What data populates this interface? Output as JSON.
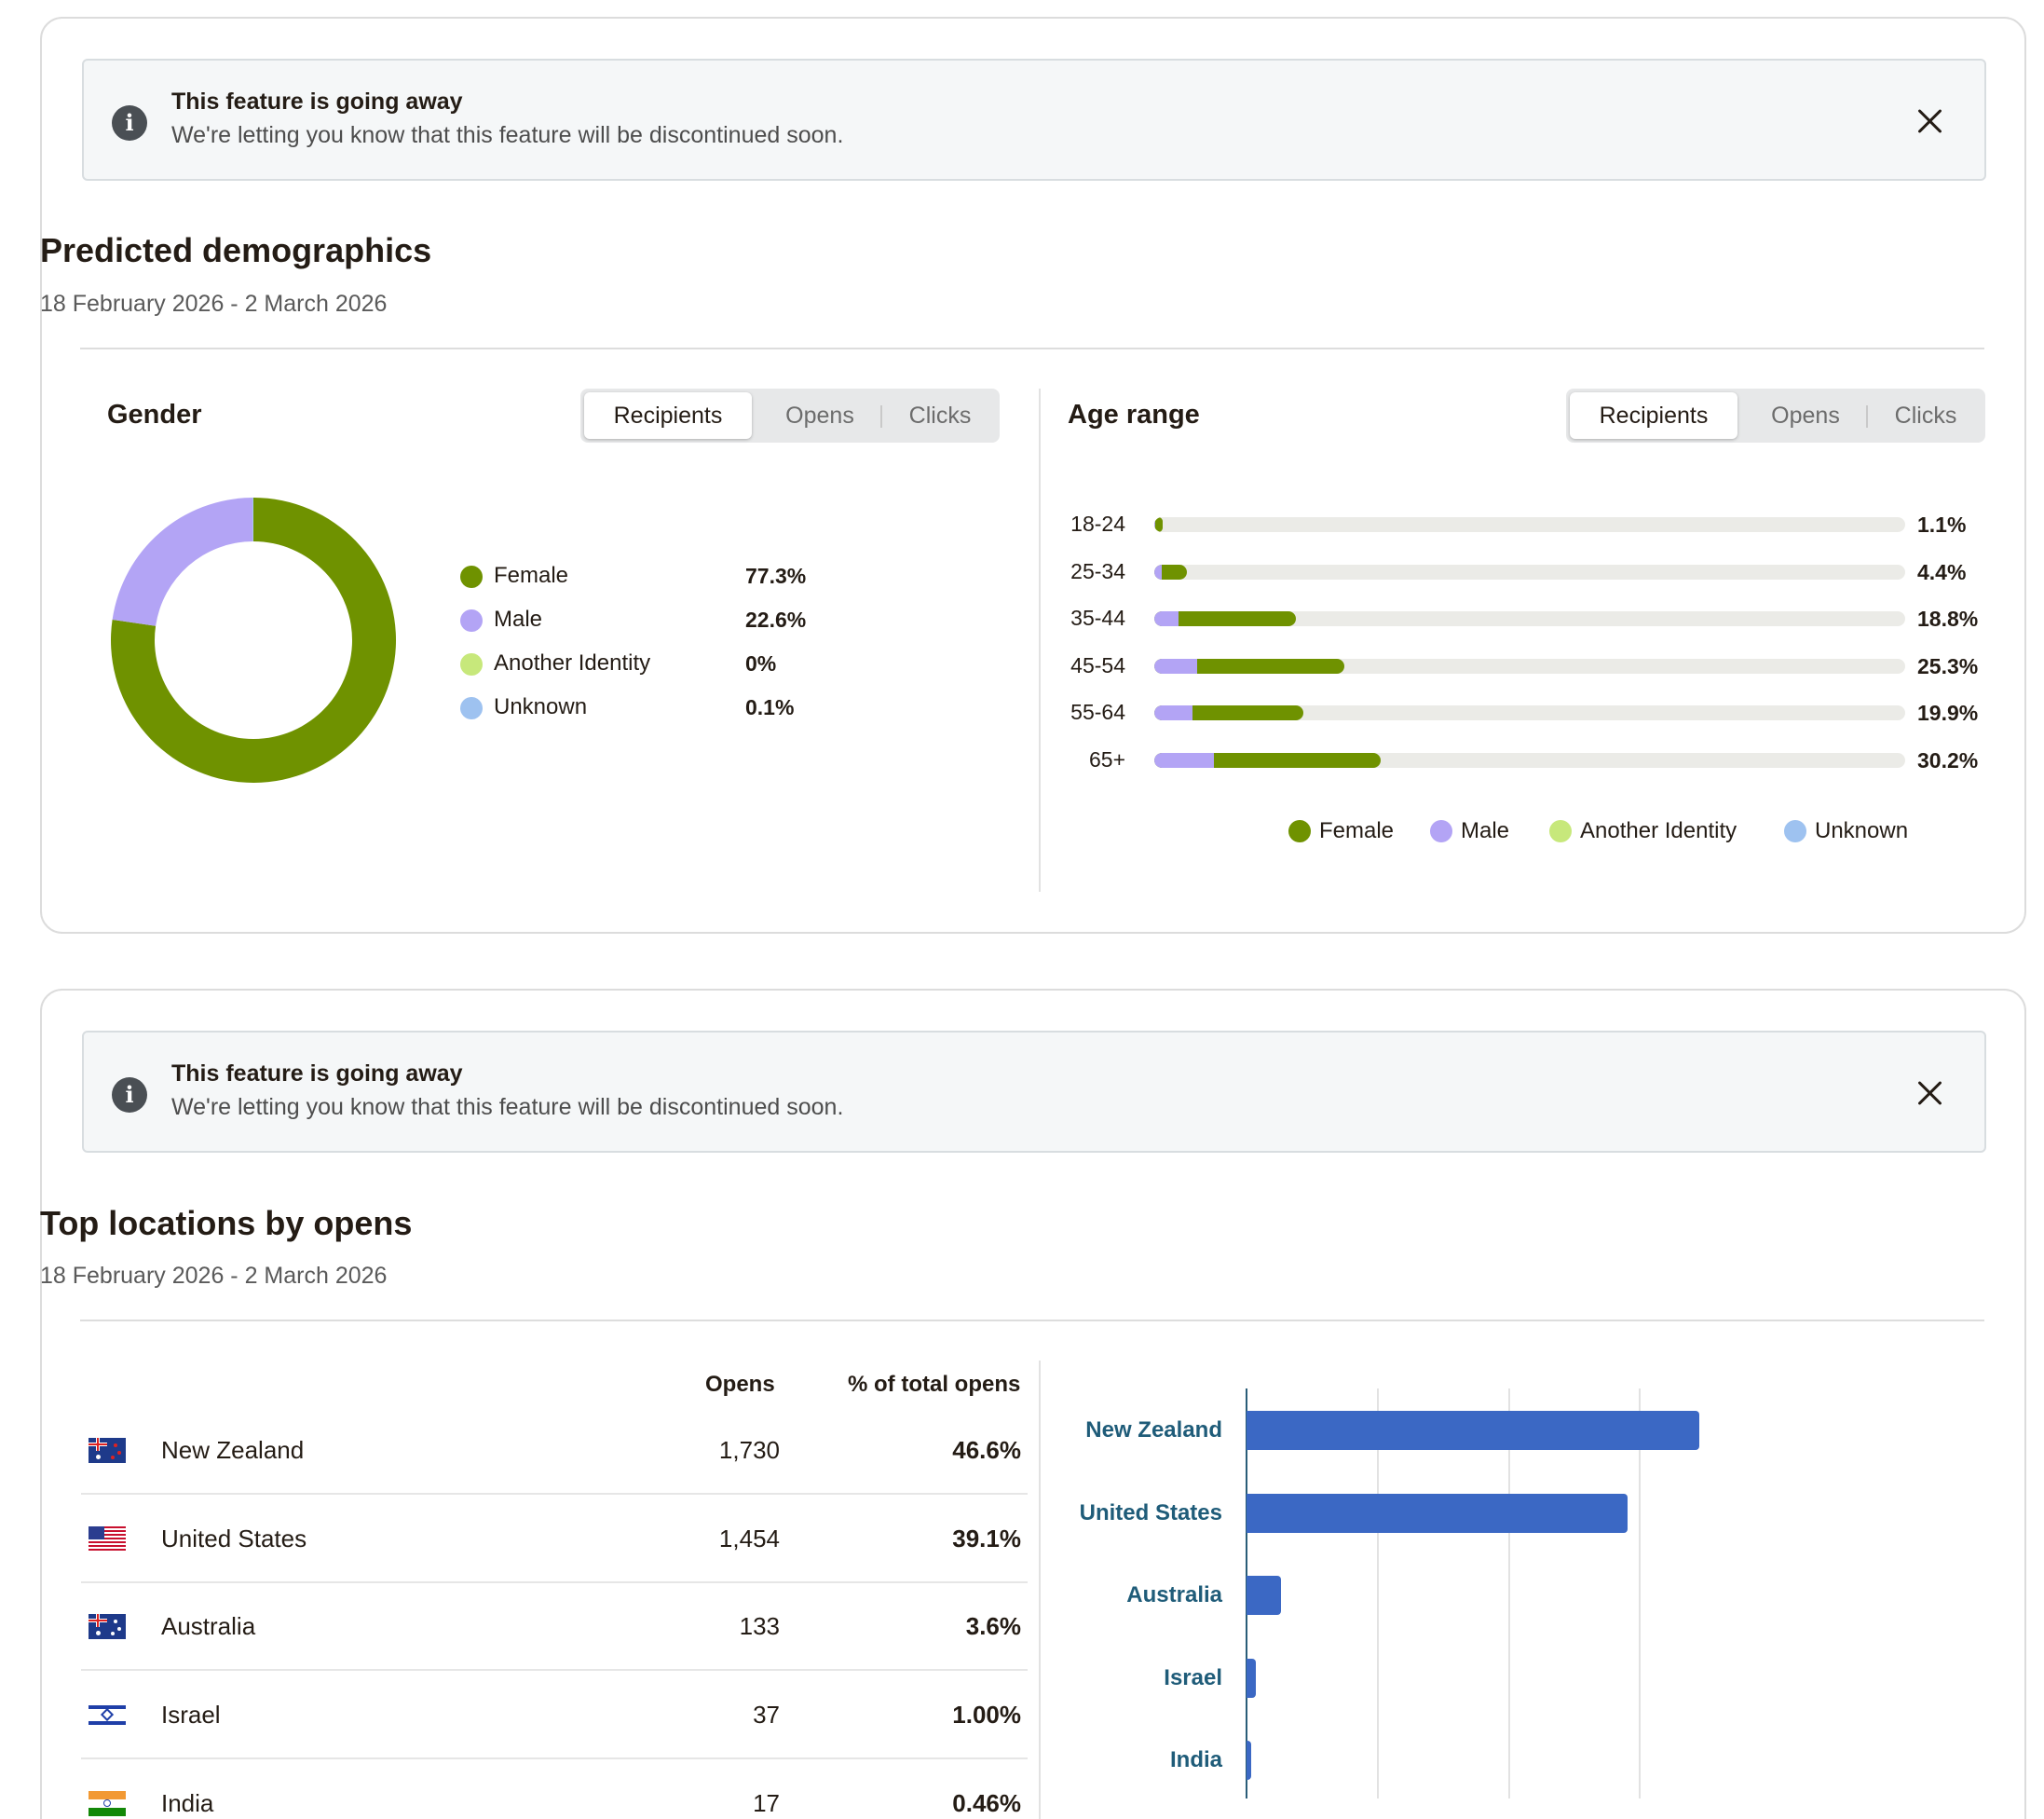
{
  "notice": {
    "title": "This feature is going away",
    "body": "We're letting you know that this feature will be discontinued soon."
  },
  "demographics": {
    "title": "Predicted demographics",
    "date_range": "18 February 2026 - 2 March 2026",
    "gender": {
      "title": "Gender",
      "tabs": [
        "Recipients",
        "Opens",
        "Clicks"
      ],
      "active_tab": "Recipients",
      "items": [
        {
          "label": "Female",
          "value": "77.3%",
          "color": "#6f9200"
        },
        {
          "label": "Male",
          "value": "22.6%",
          "color": "#b3a4f5"
        },
        {
          "label": "Another Identity",
          "value": "0%",
          "color": "#c7e87b"
        },
        {
          "label": "Unknown",
          "value": "0.1%",
          "color": "#9ec2f0"
        }
      ]
    },
    "age": {
      "title": "Age range",
      "tabs": [
        "Recipients",
        "Opens",
        "Clicks"
      ],
      "active_tab": "Recipients",
      "legend": [
        "Female",
        "Male",
        "Another Identity",
        "Unknown"
      ]
    }
  },
  "locations": {
    "title": "Top locations by opens",
    "date_range": "18 February 2026 - 2 March 2026",
    "col_opens": "Opens",
    "col_share": "% of total opens",
    "rows": [
      {
        "country": "New Zealand",
        "opens": "1,730",
        "share": "46.6%"
      },
      {
        "country": "United States",
        "opens": "1,454",
        "share": "39.1%"
      },
      {
        "country": "Australia",
        "opens": "133",
        "share": "3.6%"
      },
      {
        "country": "Israel",
        "opens": "37",
        "share": "1.00%"
      },
      {
        "country": "India",
        "opens": "17",
        "share": "0.46%"
      }
    ]
  },
  "chart_data": [
    {
      "type": "pie",
      "title": "Gender",
      "categories": [
        "Female",
        "Male",
        "Another Identity",
        "Unknown"
      ],
      "values": [
        77.3,
        22.6,
        0,
        0.1
      ],
      "colors": [
        "#6f9200",
        "#b3a4f5",
        "#c7e87b",
        "#9ec2f0"
      ]
    },
    {
      "type": "bar",
      "title": "Age range",
      "categories": [
        "18-24",
        "25-34",
        "35-44",
        "45-54",
        "55-64",
        "65+"
      ],
      "totals": [
        "1.1%",
        "4.4%",
        "18.8%",
        "25.3%",
        "19.9%",
        "30.2%"
      ],
      "series": [
        {
          "name": "Male",
          "values": [
            0.1,
            1.0,
            3.2,
            5.7,
            5.1,
            7.9
          ],
          "color": "#b3a4f5"
        },
        {
          "name": "Female",
          "values": [
            1.0,
            3.4,
            15.6,
            19.6,
            14.8,
            22.3
          ],
          "color": "#6f9200"
        }
      ],
      "xlim": [
        0,
        100
      ],
      "legend": "bottom"
    },
    {
      "type": "bar",
      "title": "Top locations by opens",
      "categories": [
        "New Zealand",
        "United States",
        "Australia",
        "Israel",
        "India"
      ],
      "values": [
        1730,
        1454,
        133,
        37,
        17
      ],
      "xlim": [
        0,
        2000
      ],
      "color": "#3b68c4"
    }
  ]
}
